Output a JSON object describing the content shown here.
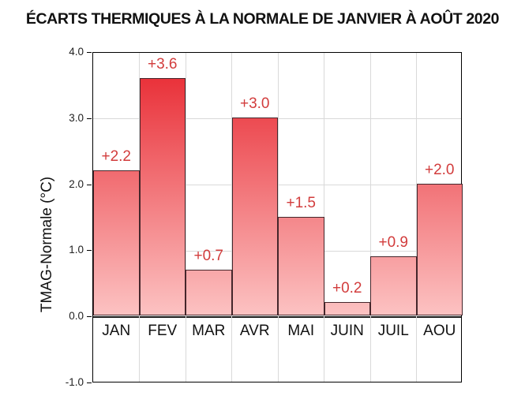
{
  "title": "ÉCARTS THERMIQUES À LA NORMALE DE JANVIER À AOÛT 2020",
  "chart_data": {
    "type": "bar",
    "title": "ÉCARTS THERMIQUES À LA NORMALE DE JANVIER À AOÛT 2020",
    "categories": [
      "JAN",
      "FEV",
      "MAR",
      "AVR",
      "MAI",
      "JUIN",
      "JUIL",
      "AOU"
    ],
    "values": [
      2.2,
      3.6,
      0.7,
      3.0,
      1.5,
      0.2,
      0.9,
      2.0
    ],
    "point_labels": [
      "+2.2",
      "+3.6",
      "+0.7",
      "+3.0",
      "+1.5",
      "+0.2",
      "+0.9",
      "+2.0"
    ],
    "xlabel": "",
    "ylabel": "TMAG-Normale (°C)",
    "ylim": [
      -1.0,
      4.0
    ],
    "yticks": [
      4.0,
      3.0,
      2.0,
      1.0,
      0.0,
      -1.0
    ],
    "ytick_labels": [
      "4.0",
      "3.0",
      "2.0",
      "1.0",
      "0.0",
      "-1.0"
    ],
    "grid": true,
    "legend": false,
    "colors": {
      "bar_gradient_top": "#e7212a",
      "bar_gradient_bottom": "#fcc2c2",
      "bar_border": "#45262b",
      "value_label": "#d23c3c",
      "gridline": "#d9d9d9",
      "zero_line": "#1a1a1a",
      "axis_frame": "#000000",
      "text": "#111111"
    }
  }
}
